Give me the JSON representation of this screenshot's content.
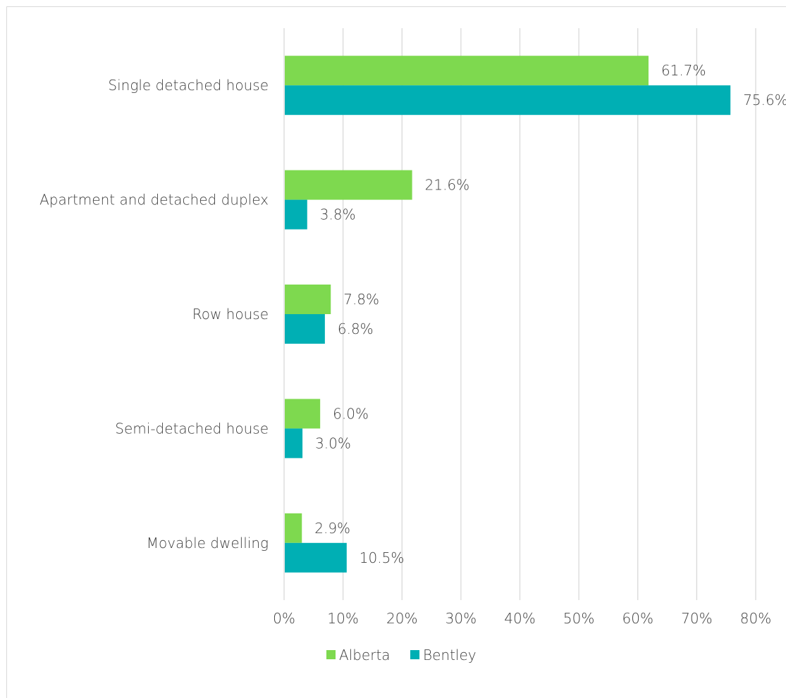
{
  "chart_data": {
    "type": "bar",
    "orientation": "horizontal",
    "title": "",
    "xlabel": "",
    "ylabel": "",
    "categories": [
      "Single detached house",
      "Apartment and detached duplex",
      "Row house",
      "Semi-detached house",
      "Movable dwelling"
    ],
    "series": [
      {
        "name": "Alberta",
        "color": "#7ed94f",
        "values": [
          61.7,
          21.6,
          7.8,
          6.0,
          2.9
        ],
        "labels": [
          "61.7%",
          "21.6%",
          "7.8%",
          "6.0%",
          "2.9%"
        ]
      },
      {
        "name": "Bentley",
        "color": "#00afb4",
        "values": [
          75.6,
          3.8,
          6.8,
          3.0,
          10.5
        ],
        "labels": [
          "75.6%",
          "3.8%",
          "6.8%",
          "3.0%",
          "10.5%"
        ]
      }
    ],
    "xlim": [
      0,
      80
    ],
    "ticks": [
      "0%",
      "10%",
      "20%",
      "30%",
      "40%",
      "50%",
      "60%",
      "70%",
      "80%"
    ],
    "tick_values": [
      0,
      10,
      20,
      30,
      40,
      50,
      60,
      70,
      80
    ],
    "grid": true,
    "gridline_color": "#d9d9d9",
    "legend_position": "bottom"
  }
}
